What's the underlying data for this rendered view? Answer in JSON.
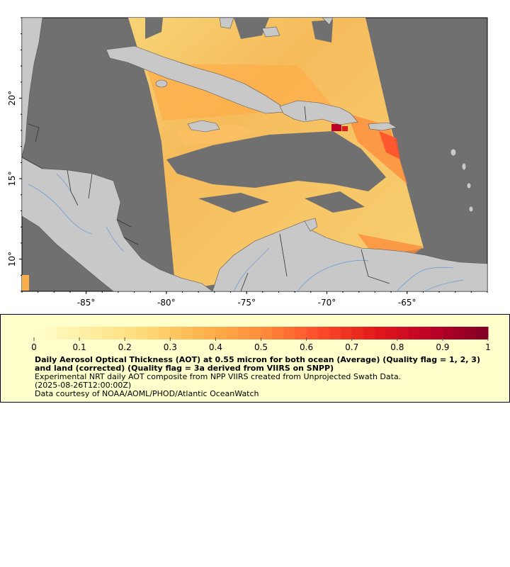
{
  "map": {
    "lon_range": [
      -89,
      -60
    ],
    "lat_range": [
      8,
      25
    ],
    "lon_ticks": [
      -85,
      -80,
      -75,
      -70,
      -65
    ],
    "lon_tick_labels": [
      "-85°",
      "-80°",
      "-75°",
      "-70°",
      "-65°"
    ],
    "lat_ticks": [
      10,
      15,
      20
    ],
    "lat_tick_labels": [
      "10°",
      "15°",
      "20°"
    ],
    "colors": {
      "background_nodata": "#707070",
      "land": "#c8c8c8",
      "rivers": "#6a9fd8",
      "borders": "#333333"
    },
    "swath_icon": "satellite-swath",
    "land_icon": "land-mass"
  },
  "legend": {
    "colorbar_ticks": [
      0,
      0.1,
      0.2,
      0.3,
      0.4,
      0.5,
      0.6,
      0.7,
      0.8,
      0.9,
      1
    ],
    "colorbar_tick_labels": [
      "0",
      "0.1",
      "0.2",
      "0.3",
      "0.4",
      "0.5",
      "0.6",
      "0.7",
      "0.8",
      "0.9",
      "1"
    ],
    "colormap": [
      "#ffffcc",
      "#ffeda0",
      "#fed976",
      "#feb24c",
      "#fd8d3c",
      "#fc4e2a",
      "#e31a1c",
      "#bd0026",
      "#800026"
    ],
    "title": "Daily Aerosol Optical Thickness (AOT) at 0.55 micron for both ocean (Average) (Quality flag = 1, 2, 3) and land (corrected) (Quality flag = 3a derived from VIIRS on SNPP)",
    "subtitle": "Experimental NRT daily AOT composite from NPP VIIRS created from Unprojected Swath Data.",
    "time": "(2025-08-26T12:00:00Z)",
    "credit": "Data courtesy of NOAA/AOML/PHOD/Atlantic OceanWatch"
  }
}
